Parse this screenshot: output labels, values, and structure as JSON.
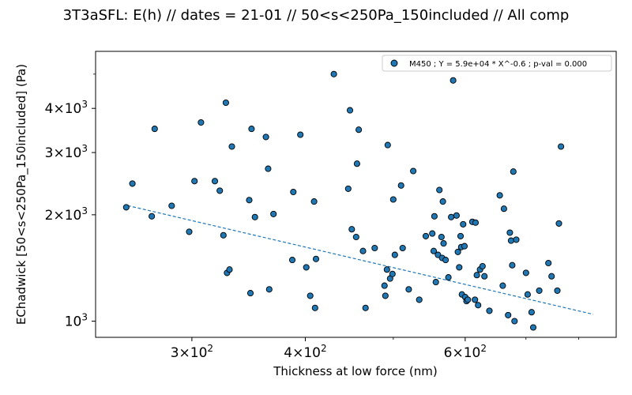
{
  "chart_data": {
    "type": "scatter",
    "title": "3T3aSFL: E(h) // dates = 21-01 // 50<s<250Pa_150included // All comp",
    "xlabel": "Thickness at low force (nm)",
    "ylabel": "EChadwick [50<s<250Pa_150included]  (Pa)",
    "xscale": "log",
    "yscale": "log",
    "xlim": [
      235,
      880
    ],
    "ylim": [
      900,
      5800
    ],
    "xticks": [
      {
        "value": 300,
        "mantissa": "3",
        "exp": "2"
      },
      {
        "value": 400,
        "mantissa": "4",
        "exp": "2"
      },
      {
        "value": 600,
        "mantissa": "6",
        "exp": "2"
      }
    ],
    "yticks": [
      {
        "value": 1000,
        "mantissa": "",
        "exp": "3"
      },
      {
        "value": 2000,
        "mantissa": "2",
        "exp": "3"
      },
      {
        "value": 3000,
        "mantissa": "3",
        "exp": "3"
      },
      {
        "value": 4000,
        "mantissa": "4",
        "exp": "3"
      }
    ],
    "times_sign": "×",
    "base": "10",
    "legend": {
      "position": "top-right",
      "label": "M450 ; Y = 5.9e+04 * X^-0.6 ; p-val = 0.000"
    },
    "fit": {
      "coef": 59000,
      "exponent": -0.6,
      "x_range": [
        255,
        830
      ],
      "color": "#1f77b4"
    },
    "series": [
      {
        "name": "M450",
        "color": "#1f77b4",
        "points": [
          [
            254,
            2100
          ],
          [
            258,
            2450
          ],
          [
            271,
            1980
          ],
          [
            273,
            3500
          ],
          [
            285,
            2120
          ],
          [
            298,
            1790
          ],
          [
            302,
            2490
          ],
          [
            307,
            3650
          ],
          [
            318,
            2490
          ],
          [
            322,
            2340
          ],
          [
            325,
            1750
          ],
          [
            327,
            4150
          ],
          [
            328,
            1370
          ],
          [
            330,
            1400
          ],
          [
            332,
            3120
          ],
          [
            347,
            2200
          ],
          [
            348,
            1200
          ],
          [
            349,
            3500
          ],
          [
            352,
            1970
          ],
          [
            362,
            3320
          ],
          [
            364,
            2700
          ],
          [
            365,
            1230
          ],
          [
            369,
            2010
          ],
          [
            387,
            1490
          ],
          [
            388,
            2320
          ],
          [
            395,
            3370
          ],
          [
            401,
            1420
          ],
          [
            405,
            1180
          ],
          [
            409,
            2180
          ],
          [
            410,
            1090
          ],
          [
            411,
            1500
          ],
          [
            430,
            5000
          ],
          [
            446,
            2370
          ],
          [
            448,
            3950
          ],
          [
            450,
            1820
          ],
          [
            455,
            1730
          ],
          [
            456,
            2790
          ],
          [
            458,
            3480
          ],
          [
            463,
            1580
          ],
          [
            466,
            1090
          ],
          [
            477,
            1610
          ],
          [
            489,
            1260
          ],
          [
            490,
            1180
          ],
          [
            492,
            1400
          ],
          [
            493,
            3150
          ],
          [
            496,
            1320
          ],
          [
            499,
            1360
          ],
          [
            500,
            2210
          ],
          [
            502,
            1540
          ],
          [
            510,
            2420
          ],
          [
            512,
            1610
          ],
          [
            520,
            1230
          ],
          [
            526,
            2660
          ],
          [
            534,
            1150
          ],
          [
            543,
            1740
          ],
          [
            552,
            1770
          ],
          [
            554,
            1580
          ],
          [
            555,
            1980
          ],
          [
            557,
            1290
          ],
          [
            560,
            1540
          ],
          [
            562,
            2350
          ],
          [
            565,
            1730
          ],
          [
            566,
            1510
          ],
          [
            567,
            2180
          ],
          [
            568,
            1660
          ],
          [
            571,
            1490
          ],
          [
            575,
            1330
          ],
          [
            579,
            1970
          ],
          [
            582,
            4800
          ],
          [
            587,
            1990
          ],
          [
            589,
            1570
          ],
          [
            591,
            1420
          ],
          [
            593,
            1740
          ],
          [
            594,
            1620
          ],
          [
            595,
            1190
          ],
          [
            597,
            1880
          ],
          [
            599,
            1630
          ],
          [
            600,
            1170
          ],
          [
            602,
            1140
          ],
          [
            604,
            1150
          ],
          [
            611,
            1910
          ],
          [
            615,
            1150
          ],
          [
            616,
            1900
          ],
          [
            618,
            1350
          ],
          [
            620,
            1110
          ],
          [
            623,
            1400
          ],
          [
            627,
            1430
          ],
          [
            630,
            1340
          ],
          [
            638,
            1070
          ],
          [
            655,
            2270
          ],
          [
            660,
            1260
          ],
          [
            662,
            2080
          ],
          [
            669,
            1040
          ],
          [
            672,
            1780
          ],
          [
            674,
            1690
          ],
          [
            676,
            1440
          ],
          [
            678,
            2650
          ],
          [
            680,
            1000
          ],
          [
            683,
            1700
          ],
          [
            700,
            1370
          ],
          [
            703,
            1190
          ],
          [
            710,
            1060
          ],
          [
            713,
            960
          ],
          [
            724,
            1220
          ],
          [
            741,
            1460
          ],
          [
            747,
            1340
          ],
          [
            758,
            1220
          ],
          [
            761,
            1890
          ],
          [
            765,
            3120
          ]
        ]
      }
    ]
  }
}
